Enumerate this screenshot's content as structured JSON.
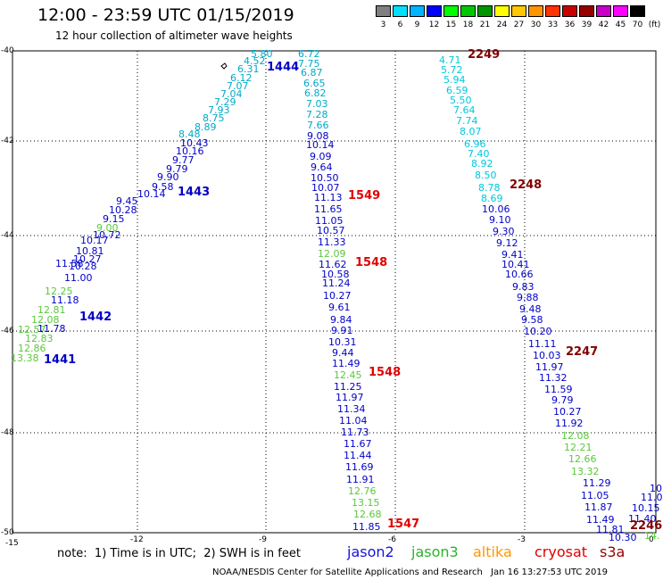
{
  "header": {
    "title": "12:00 - 23:59 UTC 01/15/2019",
    "subtitle": "12 hour collection of altimeter wave heights"
  },
  "scale": {
    "unit": "(ft)",
    "labels": [
      "3",
      "6",
      "9",
      "12",
      "15",
      "18",
      "21",
      "24",
      "27",
      "30",
      "33",
      "36",
      "39",
      "42",
      "45",
      "70"
    ],
    "colors": [
      "#808080",
      "#00e0ff",
      "#00b4ff",
      "#0000ff",
      "#00ff00",
      "#00c800",
      "#009600",
      "#ffff00",
      "#ffc800",
      "#ff9600",
      "#ff3200",
      "#c80000",
      "#960000",
      "#c800c8",
      "#ff00ff",
      "#000000"
    ]
  },
  "map": {
    "y_ticks": [
      "-40",
      "-42",
      "-44",
      "-46",
      "-48",
      "-50"
    ],
    "x_ticks": [
      "-15",
      "-12",
      "-9",
      "-6",
      "-3",
      "0"
    ]
  },
  "colors": {
    "jason2": "#0000c8",
    "jason3": "#5ac83c",
    "altika": "#ff9600",
    "cryosat": "#e10000",
    "s3a": "#800000",
    "cyan": "#00c8dc",
    "dkcyan": "#00aac8"
  },
  "tracks": [
    {
      "color": "jason3",
      "points": [
        [
          "13.38",
          12,
          396
        ],
        [
          "12.86",
          20,
          385
        ],
        [
          "12.83",
          28,
          374
        ],
        [
          "12.57",
          20,
          364
        ],
        [
          "12.08",
          35,
          353
        ],
        [
          "12.81",
          42,
          342
        ],
        [
          "12.25",
          50,
          321
        ]
      ]
    },
    {
      "color": "jason2",
      "points": [
        [
          "11.78",
          42,
          363
        ],
        [
          "11.18",
          57,
          331
        ],
        [
          "11.58",
          62,
          290
        ],
        [
          "11.00",
          72,
          306
        ],
        [
          "10.28",
          77,
          293
        ],
        [
          "10.27",
          82,
          285
        ],
        [
          "10.81",
          85,
          276
        ],
        [
          "10.17",
          90,
          264
        ],
        [
          "10.72",
          104,
          258
        ],
        [
          "9.15",
          115,
          240
        ],
        [
          "10.28",
          122,
          230
        ],
        [
          "9.45",
          130,
          220
        ],
        [
          "10.14",
          154,
          212
        ],
        [
          "9.58",
          170,
          204
        ],
        [
          "9.90",
          176,
          193
        ],
        [
          "9.79",
          186,
          184
        ],
        [
          "9.77",
          193,
          174
        ],
        [
          "10.16",
          197,
          164
        ],
        [
          "10.43",
          202,
          155
        ]
      ]
    },
    {
      "color": "jason3",
      "points": [
        [
          "9.00",
          108,
          250
        ]
      ]
    },
    {
      "color": "dkcyan",
      "points": [
        [
          "8.48",
          200,
          145
        ],
        [
          "8.89",
          218,
          137
        ],
        [
          "8.75",
          227,
          127
        ],
        [
          "7.93",
          233,
          118
        ],
        [
          "7.29",
          240,
          109
        ],
        [
          "7.04",
          247,
          100
        ],
        [
          "7.07",
          254,
          91
        ],
        [
          "6.12",
          258,
          82
        ],
        [
          "6.31",
          266,
          72
        ],
        [
          "4.52",
          273,
          63
        ],
        [
          "5.80",
          281,
          55
        ]
      ]
    },
    {
      "color": "dkcyan",
      "points": [
        [
          "6.72",
          334,
          55
        ],
        [
          "7.75",
          334,
          66
        ],
        [
          "6.87",
          337,
          76
        ],
        [
          "6.65",
          340,
          88
        ],
        [
          "6.82",
          341,
          99
        ],
        [
          "7.03",
          343,
          111
        ],
        [
          "7.28",
          343,
          123
        ],
        [
          "7.66",
          344,
          135
        ]
      ]
    },
    {
      "color": "jason2",
      "points": [
        [
          "9.08",
          344,
          147
        ],
        [
          "10.14",
          343,
          157
        ],
        [
          "9.09",
          347,
          170
        ],
        [
          "9.64",
          348,
          182
        ],
        [
          "10.50",
          348,
          194
        ],
        [
          "10.07",
          349,
          205
        ],
        [
          "11.13",
          352,
          216
        ],
        [
          "11.65",
          352,
          229
        ],
        [
          "11.05",
          353,
          242
        ],
        [
          "10.57",
          355,
          253
        ],
        [
          "11.33",
          356,
          266
        ],
        [
          "11.62",
          357,
          291
        ],
        [
          "10.58",
          360,
          302
        ],
        [
          "11.24",
          361,
          312
        ],
        [
          "10.27",
          362,
          326
        ],
        [
          "9.61",
          368,
          339
        ],
        [
          "9.84",
          370,
          353
        ],
        [
          "9.91",
          371,
          365
        ],
        [
          "10.31",
          368,
          378
        ],
        [
          "9.44",
          372,
          390
        ],
        [
          "11.49",
          372,
          402
        ],
        [
          "11.25",
          374,
          428
        ],
        [
          "11.97",
          376,
          440
        ],
        [
          "11.34",
          378,
          453
        ],
        [
          "11.04",
          380,
          466
        ],
        [
          "11.73",
          382,
          479
        ],
        [
          "11.67",
          385,
          492
        ],
        [
          "11.44",
          385,
          505
        ],
        [
          "11.69",
          387,
          518
        ],
        [
          "11.91",
          388,
          532
        ],
        [
          "11.85",
          395,
          585
        ]
      ]
    },
    {
      "color": "jason3",
      "points": [
        [
          "12.09",
          356,
          279
        ],
        [
          "12.45",
          374,
          415
        ],
        [
          "12.76",
          390,
          545
        ],
        [
          "13.15",
          394,
          558
        ],
        [
          "12.68",
          396,
          571
        ]
      ]
    },
    {
      "color": "cyan",
      "points": [
        [
          "4.71",
          492,
          62
        ],
        [
          "5.72",
          494,
          73
        ],
        [
          "5.94",
          497,
          84
        ],
        [
          "6.59",
          500,
          96
        ],
        [
          "5.50",
          504,
          107
        ],
        [
          "7.64",
          508,
          118
        ],
        [
          "7.74",
          511,
          130
        ],
        [
          "8.07",
          515,
          142
        ],
        [
          "6.96",
          520,
          156
        ],
        [
          "7.40",
          524,
          167
        ],
        [
          "8.92",
          528,
          178
        ],
        [
          "8.50",
          532,
          191
        ],
        [
          "8.78",
          536,
          205
        ],
        [
          "8.69",
          539,
          217
        ]
      ]
    },
    {
      "color": "jason2",
      "points": [
        [
          "10.06",
          540,
          229
        ],
        [
          "9.10",
          548,
          241
        ],
        [
          "9.30",
          552,
          254
        ],
        [
          "9.12",
          556,
          267
        ],
        [
          "9.41",
          562,
          280
        ],
        [
          "10.41",
          562,
          291
        ],
        [
          "10.66",
          566,
          302
        ],
        [
          "9.83",
          574,
          316
        ],
        [
          "9.88",
          579,
          328
        ],
        [
          "9.48",
          582,
          341
        ],
        [
          "9.58",
          584,
          353
        ],
        [
          "10.20",
          587,
          366
        ],
        [
          "11.11",
          592,
          380
        ],
        [
          "10.03",
          597,
          393
        ],
        [
          "11.97",
          600,
          406
        ],
        [
          "11.32",
          604,
          418
        ],
        [
          "11.59",
          610,
          431
        ],
        [
          "9.79",
          618,
          443
        ],
        [
          "10.27",
          620,
          456
        ],
        [
          "11.92",
          622,
          469
        ],
        [
          "11.29",
          653,
          536
        ],
        [
          "11.05",
          651,
          550
        ],
        [
          "11.87",
          655,
          563
        ],
        [
          "11.49",
          657,
          577
        ],
        [
          "11.81",
          668,
          588
        ],
        [
          "10.30",
          682,
          597
        ],
        [
          "11.40",
          704,
          576
        ],
        [
          "10.15",
          708,
          564
        ],
        [
          "11.0",
          718,
          552
        ],
        [
          "10",
          728,
          542
        ]
      ]
    },
    {
      "color": "jason3",
      "points": [
        [
          "12.08",
          629,
          483
        ],
        [
          "12.21",
          632,
          496
        ],
        [
          "12.66",
          637,
          509
        ],
        [
          "13.32",
          640,
          523
        ],
        [
          "14.",
          722,
          595
        ]
      ]
    }
  ],
  "passes": [
    {
      "label": "1444",
      "x": 299,
      "y": 69,
      "color": "jason2"
    },
    {
      "label": "1443",
      "x": 199,
      "y": 209,
      "color": "jason2"
    },
    {
      "label": "1442",
      "x": 89,
      "y": 349,
      "color": "jason2"
    },
    {
      "label": "1441",
      "x": 49,
      "y": 397,
      "color": "jason2"
    },
    {
      "label": "2249",
      "x": 524,
      "y": 55,
      "color": "s3a"
    },
    {
      "label": "1549",
      "x": 390,
      "y": 213,
      "color": "cryosat"
    },
    {
      "label": "2248",
      "x": 571,
      "y": 201,
      "color": "s3a"
    },
    {
      "label": "1548",
      "x": 398,
      "y": 288,
      "color": "cryosat"
    },
    {
      "label": "2247",
      "x": 634,
      "y": 388,
      "color": "s3a"
    },
    {
      "label": "1548",
      "x": 413,
      "y": 411,
      "color": "cryosat"
    },
    {
      "label": "1547",
      "x": 434,
      "y": 581,
      "color": "cryosat"
    },
    {
      "label": "2246",
      "x": 706,
      "y": 583,
      "color": "s3a"
    }
  ],
  "note": "note:  1) Time is in UTC;  2) SWH is in feet",
  "legend": [
    {
      "label": "jason2",
      "x": 389,
      "color": "#1414dc"
    },
    {
      "label": "jason3",
      "x": 461,
      "color": "#28b428"
    },
    {
      "label": "altika",
      "x": 530,
      "color": "#ff9600"
    },
    {
      "label": "cryosat",
      "x": 599,
      "color": "#e10000"
    },
    {
      "label": "s3a",
      "x": 672,
      "color": "#960000"
    }
  ],
  "footer": {
    "credit": "NOAA/NESDIS Center for Satellite Applications and Research",
    "timestamp": "Jan 16 13:27:53 UTC 2019"
  }
}
